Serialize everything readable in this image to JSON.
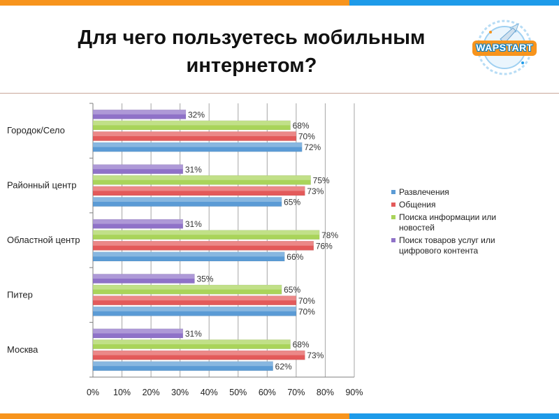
{
  "title": {
    "line1": "Для чего пользуетесь мобильным",
    "line2": "интернетом?"
  },
  "logo": {
    "text": "WAPSTART"
  },
  "colors": {
    "orange": "#f7941d",
    "blue": "#1e9be9",
    "series": [
      "#5b9bd5",
      "#e35a5a",
      "#a9d45a",
      "#8f72c8"
    ]
  },
  "chart_data": {
    "type": "bar",
    "orientation": "horizontal",
    "categories": [
      "Городок/Село",
      "Районный центр",
      "Областной центр",
      "Питер",
      "Москва"
    ],
    "series": [
      {
        "name": "Развлечения",
        "values": [
          72,
          65,
          66,
          70,
          62
        ]
      },
      {
        "name": "Общения",
        "values": [
          70,
          73,
          76,
          70,
          73
        ]
      },
      {
        "name": "Поиска информации или новостей",
        "values": [
          68,
          75,
          78,
          65,
          68
        ]
      },
      {
        "name": "Поиск товаров услуг или цифрового контента",
        "values": [
          32,
          31,
          31,
          35,
          31
        ]
      }
    ],
    "xlim": [
      0,
      90
    ],
    "xticks": [
      "0%",
      "10%",
      "20%",
      "30%",
      "40%",
      "50%",
      "60%",
      "70%",
      "80%",
      "90%"
    ],
    "value_suffix": "%",
    "grid": true,
    "legend_position": "right"
  },
  "legend_lines": [
    [
      "Развлечения"
    ],
    [
      "Общения"
    ],
    [
      "Поиска информации или",
      "новостей"
    ],
    [
      "Поиск товаров услуг или",
      "цифрового контента"
    ]
  ]
}
